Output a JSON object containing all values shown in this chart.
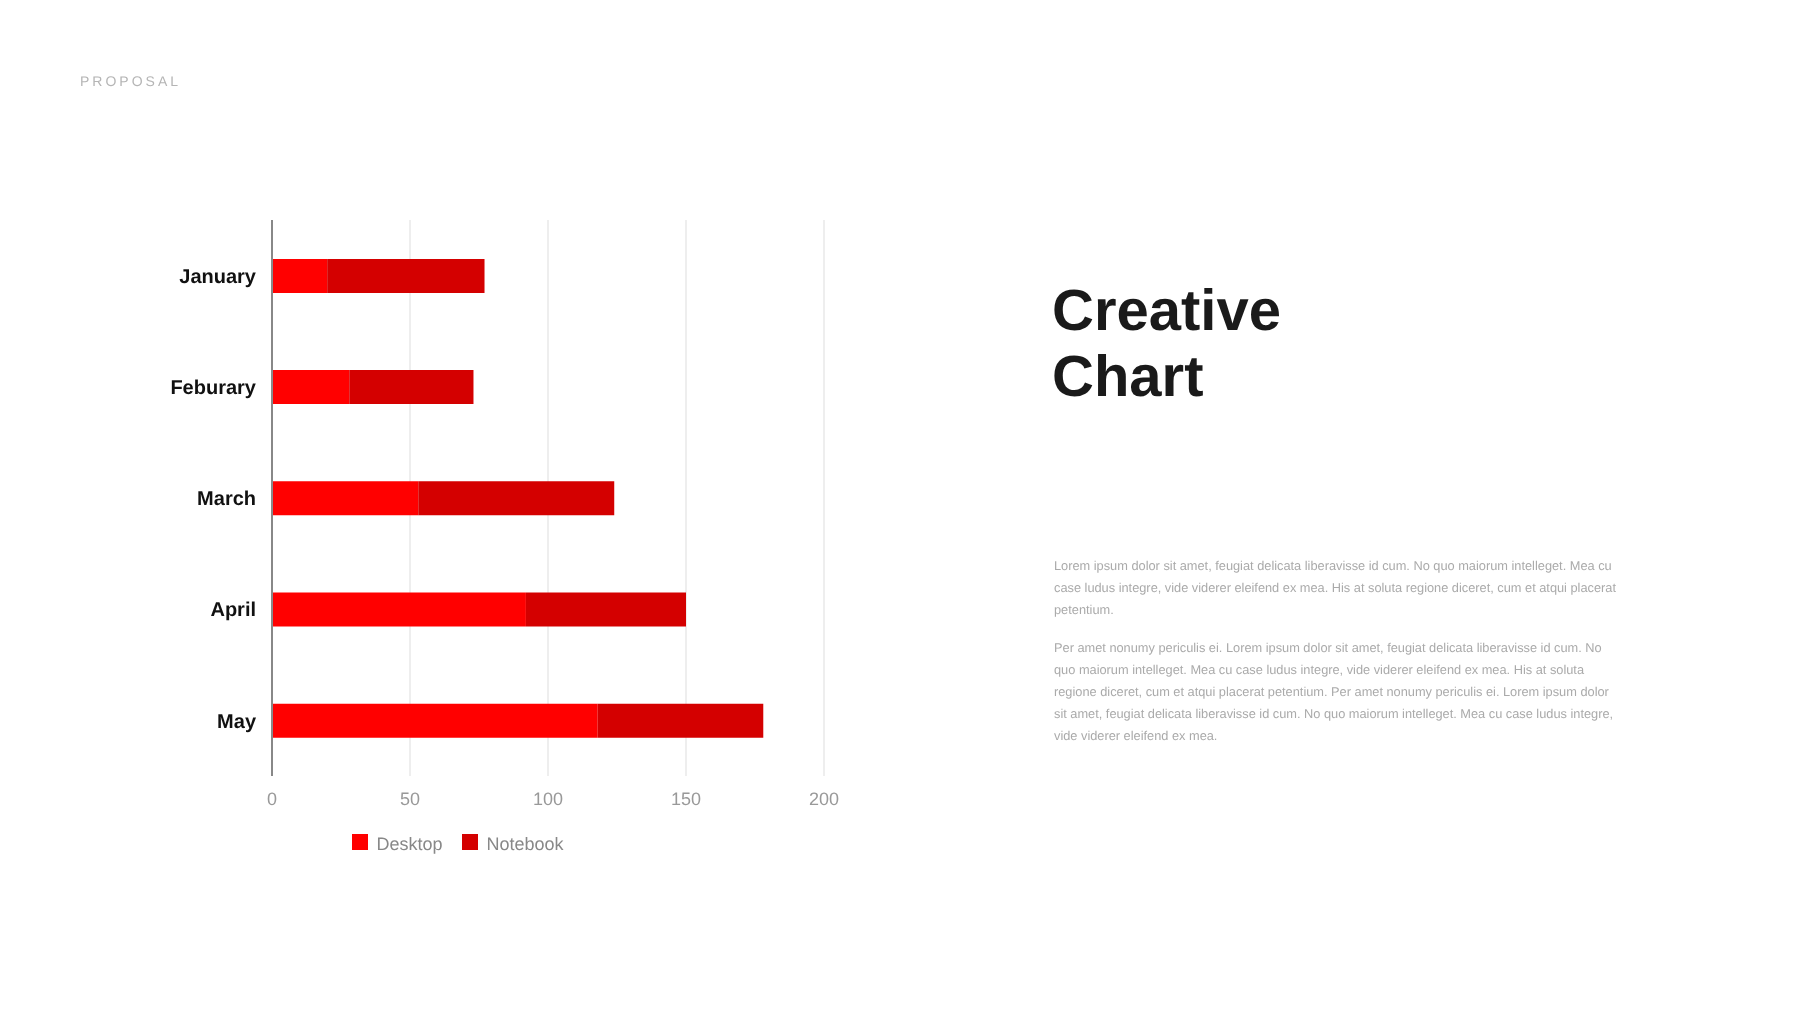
{
  "chart_data": {
    "type": "bar",
    "orientation": "horizontal",
    "stacked": true,
    "title": "Creative Chart",
    "categories": [
      "January",
      "Feburary",
      "March",
      "April",
      "May"
    ],
    "series": [
      {
        "name": "Desktop",
        "color": "#ff0000",
        "values": [
          20,
          28,
          53,
          92,
          118
        ]
      },
      {
        "name": "Notebook",
        "color": "#d40000",
        "values": [
          57,
          45,
          71,
          58,
          60
        ]
      }
    ],
    "xlim": [
      0,
      200
    ],
    "xticks": [
      0,
      50,
      100,
      150,
      200
    ],
    "grid": "x",
    "legend": "bottom",
    "annotations": [
      "PROPOSAL",
      "Lorem ipsum dolor sit amet, feugiat delicata liberavisse id cum. No quo maiorum intelleget. Mea cu case ludus integre, vide viderer eleifend ex mea. His at soluta regione diceret, cum et atqui placerat petentium.",
      "Per amet nonumy periculis ei. Lorem ipsum dolor sit amet, feugiat delicata liberavisse id cum. No quo maiorum intelleget. Mea cu case ludus integre, vide viderer eleifend ex mea. His at soluta regione diceret, cum et atqui placerat petentium. Per amet nonumy periculis ei. Lorem ipsum dolor sit amet, feugiat delicata liberavisse id cum. No quo maiorum intelleget. Mea cu case ludus integre, vide viderer eleifend ex mea."
    ]
  }
}
